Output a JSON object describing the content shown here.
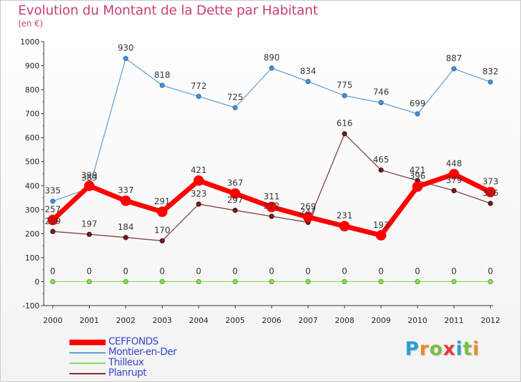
{
  "chart_data": {
    "type": "line",
    "title": "Evolution du Montant de la Dette par Habitant",
    "subtitle": "(en €)",
    "xlabel": "",
    "ylabel": "",
    "x": [
      "2000",
      "2001",
      "2002",
      "2003",
      "2004",
      "2005",
      "2006",
      "2007",
      "2008",
      "2009",
      "2010",
      "2011",
      "2012"
    ],
    "ylim": [
      -100,
      1000
    ],
    "yticks": [
      -100,
      0,
      100,
      200,
      300,
      400,
      500,
      600,
      700,
      800,
      900,
      1000
    ],
    "grid": false,
    "legend_position": "bottom-left",
    "series": [
      {
        "name": "CEFFONDS",
        "color": "#ff0000",
        "values": [
          257,
          399,
          337,
          291,
          421,
          367,
          311,
          269,
          231,
          193,
          396,
          448,
          373
        ]
      },
      {
        "name": "Montier-en-Der",
        "color": "#5b9bd5",
        "values": [
          335,
          389,
          930,
          818,
          772,
          725,
          890,
          834,
          775,
          746,
          699,
          887,
          832
        ]
      },
      {
        "name": "Thilleux",
        "color": "#88dd55",
        "values": [
          0,
          0,
          0,
          0,
          0,
          0,
          0,
          0,
          0,
          0,
          0,
          0,
          0
        ]
      },
      {
        "name": "Planrupt",
        "color": "#7a2f2f",
        "values": [
          209,
          197,
          184,
          170,
          323,
          297,
          272,
          247,
          616,
          465,
          421,
          379,
          326
        ]
      }
    ]
  },
  "logo": {
    "text": "Proxiti",
    "letters": [
      {
        "ch": "P",
        "color": "#2a9fd6"
      },
      {
        "ch": "r",
        "color": "#f08a1c"
      },
      {
        "ch": "o",
        "color": "#7bc043"
      },
      {
        "ch": "x",
        "color": "#e63b3b"
      },
      {
        "ch": "i",
        "color": "#2a9fd6"
      },
      {
        "ch": "t",
        "color": "#7bc043"
      },
      {
        "ch": "i",
        "color": "#f08a1c"
      }
    ]
  }
}
